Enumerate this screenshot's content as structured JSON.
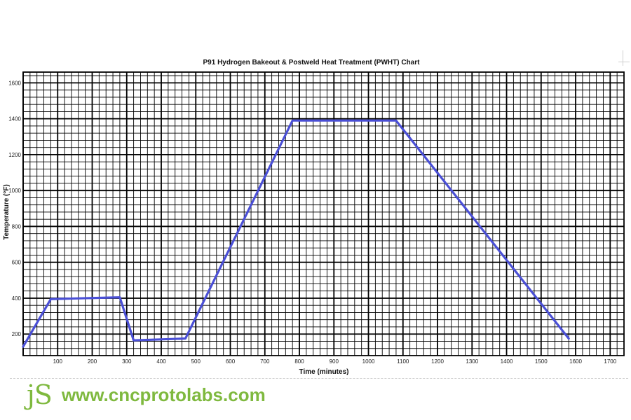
{
  "chart_data": {
    "type": "line",
    "title": "P91 Hydrogen Bakeout & Postweld Heat Treatment (PWHT) Chart",
    "xlabel": "Time (minutes)",
    "ylabel": "Temperature (°F)",
    "xlim": [
      0,
      1740
    ],
    "ylim": [
      80,
      1660
    ],
    "x_ticks": [
      100,
      200,
      300,
      400,
      500,
      600,
      700,
      800,
      900,
      1000,
      1100,
      1200,
      1300,
      1400,
      1500,
      1600,
      1700
    ],
    "y_ticks": [
      200,
      400,
      600,
      800,
      1000,
      1200,
      1400,
      1600
    ],
    "x_tick_labels": [
      "100",
      "200",
      "300",
      "400",
      "500",
      "600",
      "700",
      "800",
      "900",
      "1000",
      "1100",
      "1200",
      "1300",
      "1400",
      "1500",
      "1600",
      "1700"
    ],
    "y_tick_labels": [
      "200",
      "400",
      "600",
      "800",
      "1000",
      "1200",
      "1400",
      "1600"
    ],
    "grid": true,
    "legend": "none",
    "series": [
      {
        "color": "#4a4fd6",
        "x": [
          0,
          80,
          280,
          320,
          470,
          780,
          1080,
          1580
        ],
        "y": [
          130,
          395,
          405,
          165,
          175,
          1390,
          1390,
          175
        ]
      }
    ]
  },
  "footer": {
    "logo_text": "jS",
    "url": "www.cncprotolabs.com"
  }
}
